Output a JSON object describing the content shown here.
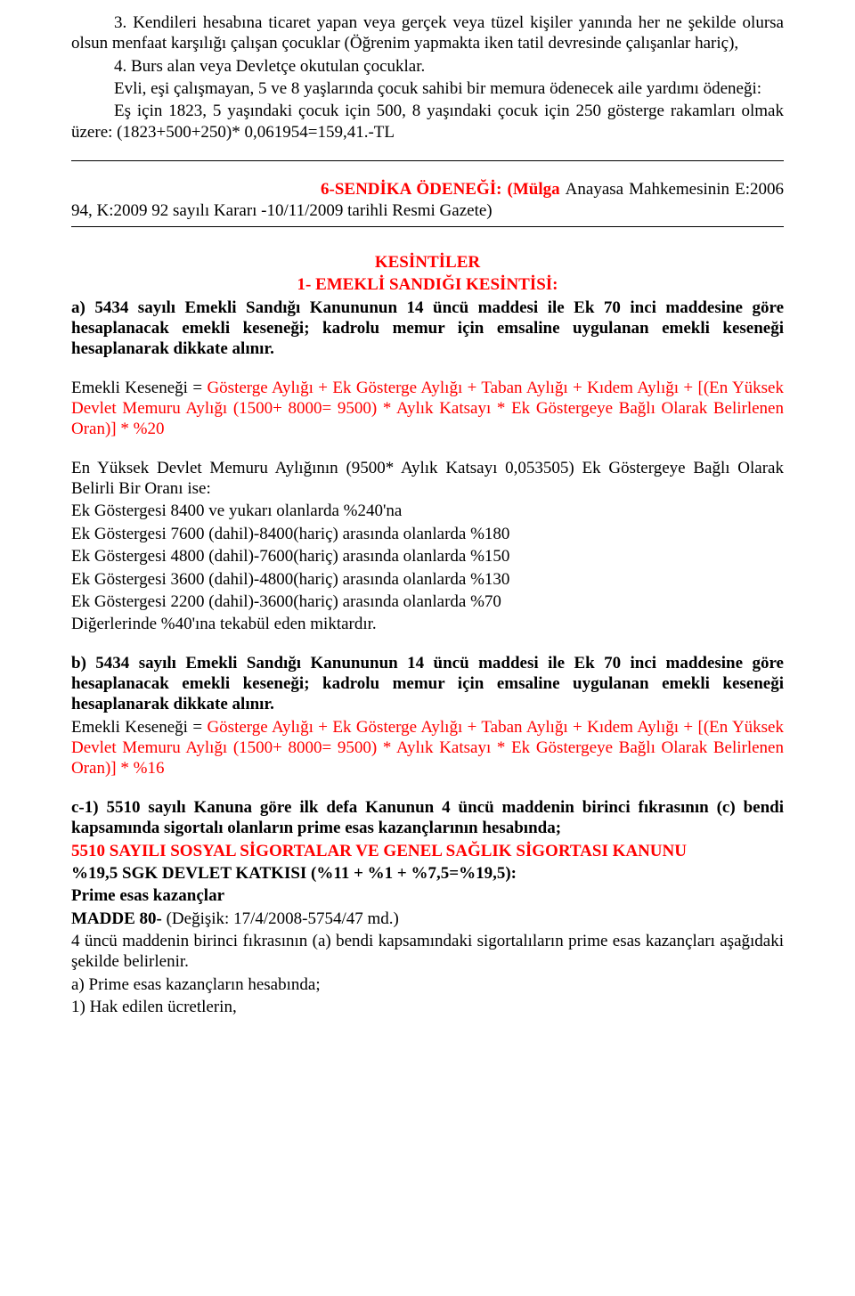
{
  "para1": "3. Kendileri hesabına ticaret yapan veya gerçek veya tüzel kişiler yanında her ne şekilde olursa olsun menfaat karşılığı çalışan çocuklar (Öğrenim yapmakta iken tatil devresinde çalışanlar hariç),",
  "para2": "4. Burs alan veya Devletçe okutulan çocuklar.",
  "para3": "Evli, eşi çalışmayan, 5 ve 8 yaşlarında çocuk sahibi bir memura ödenecek aile yardımı ödeneği:",
  "para4": "Eş için 1823, 5 yaşındaki çocuk için 500, 8 yaşındaki çocuk için 250 gösterge rakamları olmak üzere: (1823+500+250)* 0,061954=159,41.-TL",
  "headline6_label": "6-SENDİKA ÖDENEĞİ: (Mülga ",
  "headline6_black": "Anayasa Mahkemesinin E:2006 94, K:2009 92 sayılı Kararı -10/11/2009 tarihli Resmi Gazete)",
  "kesintiler": "KESİNTİLER",
  "kes_sub": "1- EMEKLİ SANDIĞI KESİNTİSİ:",
  "kes_a": "a) 5434 sayılı Emekli Sandığı Kanununun 14 üncü maddesi ile Ek 70 inci maddesine göre hesaplanacak emekli keseneği; kadrolu memur için emsaline uygulanan emekli keseneği hesaplanarak dikkate alınır.",
  "emk1_pre": "Emekli Keseneği = ",
  "emk1_red": "Gösterge Aylığı + Ek Gösterge Aylığı + Taban Aylığı  + Kıdem Aylığı + [(En Yüksek Devlet Memuru Aylığı (1500+ 8000= 9500) *  Aylık Katsayı *  Ek Göstergeye Bağlı Olarak Belirlenen Oran)] * %20",
  "eky_line1": "En Yüksek Devlet Memuru Aylığının (9500* Aylık Katsayı 0,053505) Ek Göstergeye Bağlı Olarak Belirli Bir Oranı ise:",
  "eky_line2": "Ek Göstergesi 8400 ve yukarı olanlarda %240'na",
  "eky_line3": "Ek Göstergesi 7600 (dahil)-8400(hariç) arasında olanlarda %180",
  "eky_line4": "Ek Göstergesi 4800 (dahil)-7600(hariç) arasında olanlarda %150",
  "eky_line5": "Ek Göstergesi 3600 (dahil)-4800(hariç) arasında olanlarda %130",
  "eky_line6": "Ek Göstergesi 2200 (dahil)-3600(hariç) arasında olanlarda %70",
  "eky_line7": "Diğerlerinde %40'ına tekabül eden miktardır.",
  "kes_b": "b) 5434 sayılı Emekli Sandığı Kanununun 14 üncü maddesi ile Ek 70 inci maddesine göre hesaplanacak emekli keseneği; kadrolu memur için emsaline uygulanan emekli keseneği hesaplanarak dikkate alınır.",
  "emk2_pre": "Emekli Keseneği = ",
  "emk2_red": "Gösterge Aylığı + Ek Gösterge Aylığı + Taban Aylığı  + Kıdem Aylığı + [(En Yüksek Devlet Memuru Aylığı (1500+ 8000= 9500) *  Aylık Katsayı *  Ek Göstergeye Bağlı Olarak Belirlenen Oran)] *  %16",
  "c1_head": "c-1) 5510 sayılı Kanuna göre ilk defa Kanunun 4 üncü maddenin birinci fıkrasının (c) bendi kapsamında sigortalı olanların prime esas kazançlarının hesabında;",
  "c1_red": "5510 SAYILI SOSYAL SİGORTALAR VE GENEL SAĞLIK  SİGORTASI KANUNU",
  "c1_pct": "%19,5 SGK DEVLET KATKISI (%11 + %1 + %7,5=%19,5):",
  "c1_pek": "Prime esas kazançlar",
  "c1_madde": "MADDE 80- ",
  "c1_madde_paren": "(Değişik: 17/4/2008-5754/47 md.)",
  "c1_p2": "4 üncü maddenin birinci fıkrasının (a) bendi kapsamındaki sigortalıların prime esas kazançları aşağıdaki şekilde belirlenir.",
  "c1_p3": "a) Prime esas kazançların hesabında;",
  "c1_p4": "1) Hak edilen ücretlerin,"
}
